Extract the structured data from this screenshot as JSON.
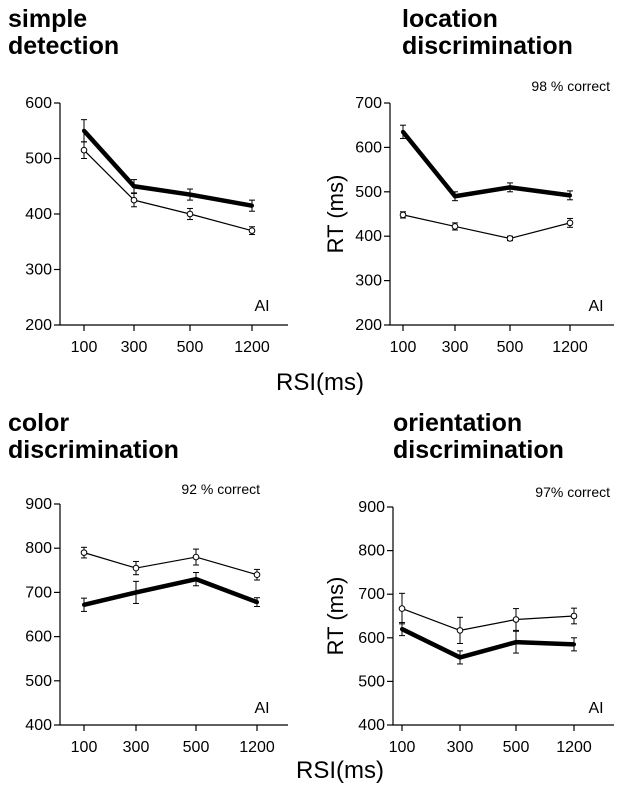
{
  "xlabel_top": "RSI(ms)",
  "xlabel_bottom": "RSI(ms)",
  "chart_data": [
    {
      "type": "line",
      "title_lines": [
        "simple",
        "detection"
      ],
      "note": "",
      "subject": "AI",
      "ylabel": "",
      "categories": [
        "100",
        "300",
        "500",
        "1200"
      ],
      "ylim": [
        200,
        600
      ],
      "yticks": [
        200,
        300,
        400,
        500,
        600
      ],
      "series": [
        {
          "style": "thick",
          "values": [
            550,
            450,
            435,
            415
          ],
          "errors": [
            20,
            12,
            10,
            10
          ]
        },
        {
          "style": "thin-open-circle",
          "values": [
            515,
            425,
            400,
            370
          ],
          "errors": [
            15,
            12,
            10,
            7
          ]
        }
      ]
    },
    {
      "type": "line",
      "title_lines": [
        "location",
        "discrimination"
      ],
      "note": "98 % correct",
      "subject": "AI",
      "ylabel": "RT (ms)",
      "categories": [
        "100",
        "300",
        "500",
        "1200"
      ],
      "ylim": [
        200,
        700
      ],
      "yticks": [
        200,
        300,
        400,
        500,
        600,
        700
      ],
      "series": [
        {
          "style": "thick",
          "values": [
            635,
            490,
            510,
            492
          ],
          "errors": [
            15,
            10,
            10,
            10
          ]
        },
        {
          "style": "thin-open-circle",
          "values": [
            448,
            422,
            395,
            430
          ],
          "errors": [
            7,
            8,
            5,
            10
          ]
        }
      ]
    },
    {
      "type": "line",
      "title_lines": [
        "color",
        "discrimination"
      ],
      "note": "92 % correct",
      "subject": "AI",
      "ylabel": "",
      "categories": [
        "100",
        "300",
        "500",
        "1200"
      ],
      "ylim": [
        400,
        900
      ],
      "yticks": [
        400,
        500,
        600,
        700,
        800,
        900
      ],
      "series": [
        {
          "style": "thin-open-circle",
          "values": [
            790,
            755,
            780,
            740
          ],
          "errors": [
            12,
            15,
            18,
            12
          ]
        },
        {
          "style": "thick",
          "values": [
            672,
            700,
            730,
            678
          ],
          "errors": [
            15,
            25,
            15,
            10
          ]
        }
      ]
    },
    {
      "type": "line",
      "title_lines": [
        "orientation",
        "discrimination"
      ],
      "note": "97% correct",
      "subject": "AI",
      "ylabel": "RT (ms)",
      "categories": [
        "100",
        "300",
        "500",
        "1200"
      ],
      "ylim": [
        400,
        900
      ],
      "yticks": [
        400,
        500,
        600,
        700,
        800,
        900
      ],
      "series": [
        {
          "style": "thin-open-circle",
          "values": [
            667,
            617,
            642,
            650
          ],
          "errors": [
            35,
            30,
            25,
            18
          ]
        },
        {
          "style": "thick",
          "values": [
            620,
            555,
            590,
            585
          ],
          "errors": [
            15,
            15,
            25,
            15
          ]
        }
      ]
    }
  ]
}
